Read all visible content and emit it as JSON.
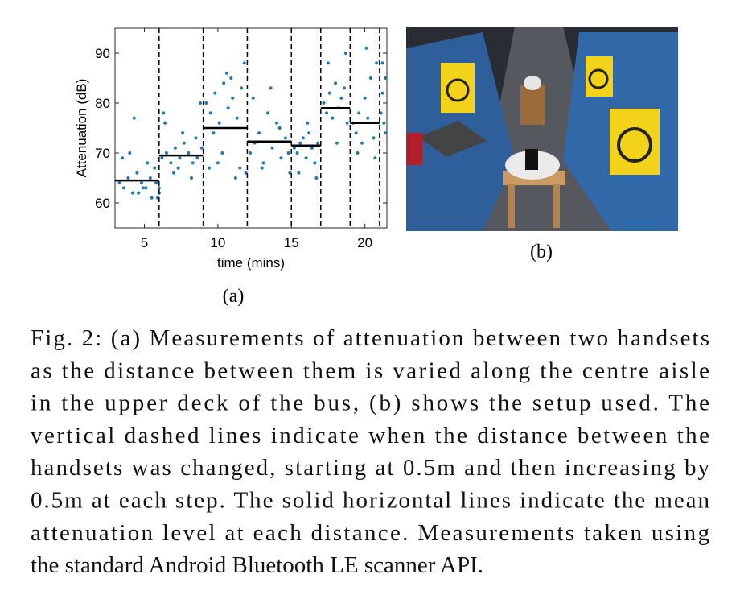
{
  "chart_data": {
    "type": "scatter",
    "ylabel": "Attenuation (dB)",
    "xlabel": "time (mins)",
    "panel_label": "(a)",
    "color": "#1f77b4",
    "x": [
      3.3,
      3.6,
      3.9,
      4.2,
      4.5,
      4.8,
      5.1,
      5.4,
      5.7,
      5.9,
      3.5,
      4.0,
      4.6,
      5.2,
      5.8,
      4.3,
      4.9,
      5.5,
      6.0,
      6.0,
      6.2,
      6.5,
      6.8,
      7.1,
      7.4,
      7.7,
      8.0,
      8.3,
      8.6,
      8.9,
      6.4,
      7.0,
      7.6,
      8.2,
      8.8,
      6.3,
      7.3,
      8.5,
      9.2,
      9.5,
      9.8,
      10.1,
      10.4,
      10.7,
      11.0,
      11.3,
      11.6,
      11.9,
      9.4,
      10.0,
      10.6,
      11.2,
      11.8,
      9.7,
      10.3,
      10.9,
      11.5,
      12.2,
      12.5,
      12.8,
      13.1,
      13.4,
      13.7,
      14.0,
      14.3,
      14.6,
      14.9,
      12.4,
      13.0,
      13.6,
      14.2,
      14.8,
      15.2,
      15.4,
      15.6,
      15.8,
      16.0,
      16.2,
      16.4,
      16.6,
      16.8,
      15.5,
      16.1,
      16.7,
      17.2,
      17.4,
      17.6,
      17.8,
      18.0,
      18.2,
      18.4,
      18.6,
      18.8,
      17.5,
      18.1,
      18.7,
      19.2,
      19.4,
      19.6,
      19.8,
      20.0,
      20.2,
      20.4,
      20.6,
      20.8,
      19.5,
      20.1,
      20.7,
      21.1,
      21.2,
      21.3,
      21.4,
      21.2,
      21.4
    ],
    "y": [
      64,
      63,
      65,
      62,
      66,
      64,
      63,
      65,
      67,
      61,
      69,
      70,
      62,
      68,
      64,
      77,
      63,
      61,
      63,
      62,
      69,
      70,
      68,
      71,
      69,
      72,
      70,
      68,
      69,
      71,
      76,
      66,
      74,
      65,
      80,
      78,
      67,
      73,
      80,
      78,
      82,
      76,
      84,
      79,
      81,
      77,
      83,
      66,
      67,
      68,
      86,
      65,
      88,
      74,
      70,
      85,
      67,
      70,
      72,
      74,
      68,
      78,
      71,
      76,
      69,
      73,
      66,
      81,
      67,
      83,
      75,
      70,
      71,
      70,
      72,
      73,
      69,
      74,
      71,
      68,
      72,
      66,
      76,
      65,
      80,
      78,
      82,
      77,
      84,
      79,
      81,
      83,
      76,
      88,
      72,
      90,
      76,
      74,
      78,
      72,
      81,
      77,
      85,
      73,
      88,
      70,
      91,
      69,
      78,
      82,
      76,
      85,
      88,
      74
    ],
    "mean_levels": [
      {
        "start": 3,
        "end": 6,
        "value": 64.5
      },
      {
        "start": 6,
        "end": 9,
        "value": 69.5
      },
      {
        "start": 9,
        "end": 12,
        "value": 75
      },
      {
        "start": 12,
        "end": 15,
        "value": 72.3
      },
      {
        "start": 15,
        "end": 17,
        "value": 71.5
      },
      {
        "start": 17,
        "end": 19,
        "value": 79
      },
      {
        "start": 19,
        "end": 21,
        "value": 76
      }
    ],
    "step_times": [
      6,
      9,
      12,
      15,
      17,
      19,
      21
    ],
    "xlim": [
      3,
      21.5
    ],
    "ylim": [
      55,
      95
    ],
    "xticks": [
      5,
      10,
      15,
      20
    ],
    "yticks": [
      60,
      70,
      80,
      90
    ]
  },
  "figure": {
    "panel_b_label": "(b)"
  },
  "caption": {
    "lines": [
      "Fig. 2: (a) Measurements of attenuation between two handsets",
      "as the distance between them is varied along the centre aisle",
      "in the upper deck of the bus, (b) shows the setup used. The",
      "vertical dashed lines indicate when the distance between the",
      "handsets was changed, starting at 0.5m and then increasing by",
      "0.5m at each step. The solid horizontal lines indicate the mean",
      "attenuation level at each distance. Measurements taken using",
      "the standard Android Bluetooth LE scanner API."
    ]
  }
}
